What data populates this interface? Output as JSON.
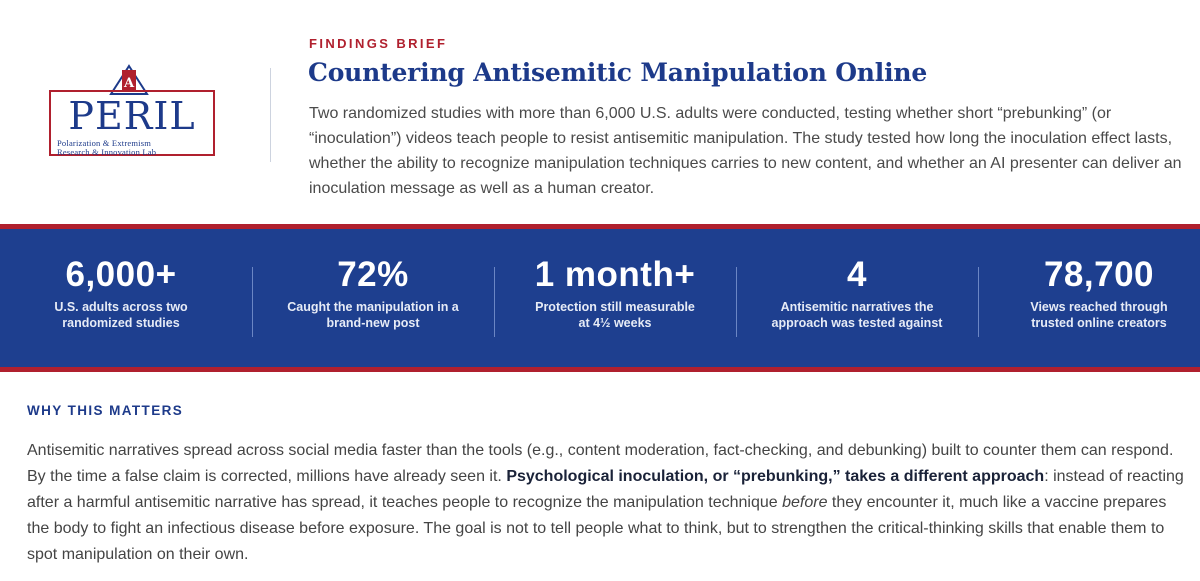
{
  "logo": {
    "letters": "AU",
    "word": "PERIL",
    "subtitle_line1": "Polarization & Extremism",
    "subtitle_line2": "Research & Innovation Lab"
  },
  "header": {
    "eyebrow": "FINDINGS BRIEF",
    "title": "Countering Antisemitic Manipulation Online",
    "intro": "Two randomized studies with more than 6,000 U.S. adults were conducted, testing whether short “prebunking” (or “inoculation”) videos teach people to resist antisemitic manipulation. The study tested how long the inoculation effect lasts, whether the ability to recognize manipulation techniques carries to new content, and whether an AI presenter can deliver an inoculation message as well as a human creator."
  },
  "stats": [
    {
      "value": "6,000+",
      "label": "U.S. adults across two randomized studies"
    },
    {
      "value": "72%",
      "label": "Caught the manipulation in a brand-new post"
    },
    {
      "value": "1 month+",
      "label": "Protection still measurable at 4½ weeks"
    },
    {
      "value": "4",
      "label": "Antisemitic narratives the approach was tested against"
    },
    {
      "value": "78,700",
      "label": "Views reached through trusted online creators"
    }
  ],
  "why": {
    "heading": "WHY THIS MATTERS",
    "p1": "Antisemitic narratives spread across social media faster than the tools (e.g., content moderation, fact-checking, and debunking) built to counter them can respond. By the time a false claim is corrected, millions have already seen it. ",
    "p_bold": "Psychological inoculation, or “prebunking,” takes a different approach",
    "p2": ": instead of reacting after a harmful antisemitic narrative has spread, it teaches people to recognize the manipulation technique ",
    "p_italic": "before",
    "p3": " they encounter it, much like a vaccine prepares the body to fight an infectious disease before exposure. The goal is not to tell people what to think, but to strengthen the critical-thinking skills that enable them to spot manipulation on their own."
  },
  "colors": {
    "navy": "#1d3a8a",
    "band": "#1e3f8f",
    "red": "#b0202e"
  }
}
